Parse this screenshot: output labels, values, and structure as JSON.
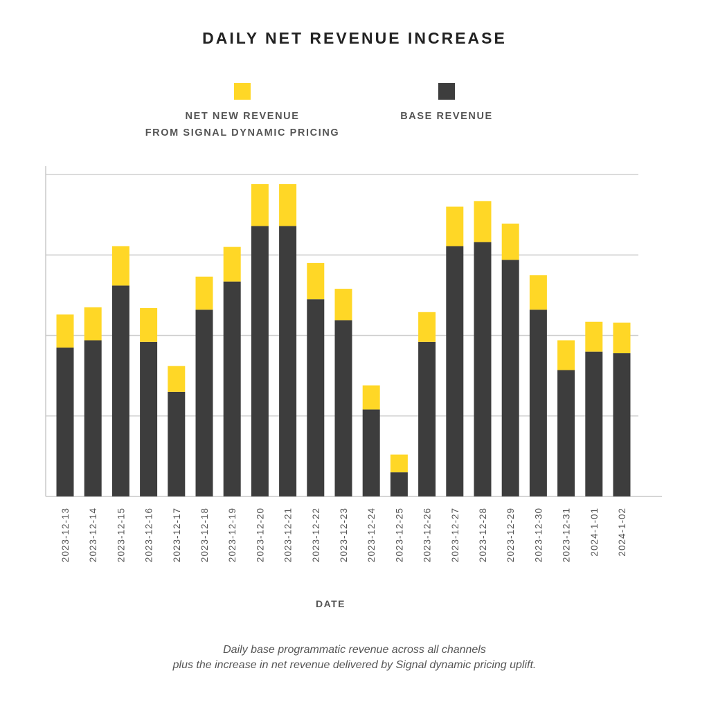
{
  "chart_data": {
    "type": "bar",
    "stacked": true,
    "title": "DAILY NET REVENUE INCREASE",
    "xlabel": "DATE",
    "ylabel": "",
    "ylim": [
      0,
      4.1
    ],
    "grid": true,
    "legend_position": "top",
    "categories": [
      "2023-12-13",
      "2023-12-14",
      "2023-12-15",
      "2023-12-16",
      "2023-12-17",
      "2023-12-18",
      "2023-12-19",
      "2023-12-20",
      "2023-12-21",
      "2023-12-22",
      "2023-12-23",
      "2023-12-24",
      "2023-12-25",
      "2023-12-26",
      "2023-12-27",
      "2023-12-28",
      "2023-12-29",
      "2023-12-30",
      "2023-12-31",
      "2024-1-01",
      "2024-1-02"
    ],
    "series": [
      {
        "name": "BASE REVENUE",
        "color": "#3d3d3d",
        "values": [
          1.85,
          1.94,
          2.62,
          1.92,
          1.3,
          2.32,
          2.67,
          3.36,
          3.36,
          2.45,
          2.19,
          1.08,
          0.3,
          1.92,
          3.11,
          3.16,
          2.94,
          2.32,
          1.57,
          1.8,
          1.78
        ]
      },
      {
        "name": "NET NEW REVENUE\nFROM SIGNAL DYNAMIC PRICING",
        "color": "#ffd726",
        "values": [
          0.41,
          0.41,
          0.49,
          0.42,
          0.32,
          0.41,
          0.43,
          0.52,
          0.52,
          0.45,
          0.39,
          0.3,
          0.22,
          0.37,
          0.49,
          0.51,
          0.45,
          0.43,
          0.37,
          0.37,
          0.38
        ]
      }
    ],
    "caption": "Daily base programmatic revenue across all channels\nplus the increase in net revenue delivered by Signal dynamic pricing uplift."
  },
  "legend": {
    "items": [
      {
        "label": "NET NEW REVENUE\nFROM SIGNAL DYNAMIC PRICING",
        "color": "#ffd726"
      },
      {
        "label": "BASE REVENUE",
        "color": "#3d3d3d"
      }
    ]
  }
}
